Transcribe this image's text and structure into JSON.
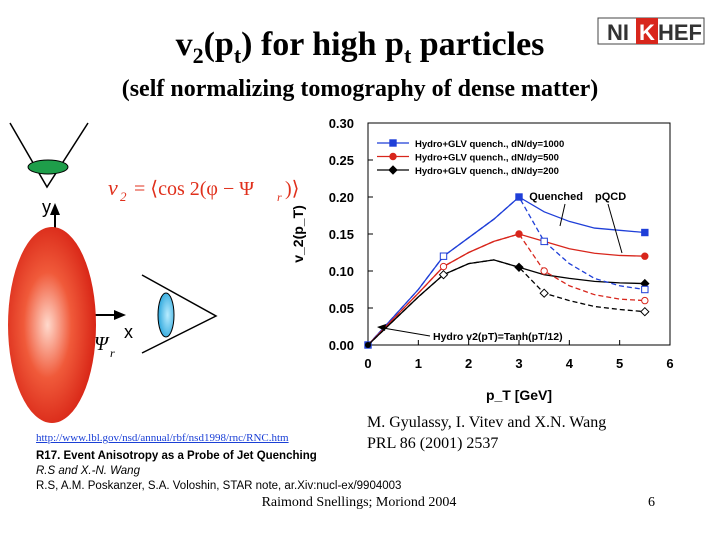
{
  "slide": {
    "title_main": "v",
    "title_sub1": "2",
    "title_mid": "(p",
    "title_sub2": "t",
    "title_end": ") for high p",
    "title_sub3": "t",
    "title_tail": " particles",
    "subtitle": "(self normalizing tomography of dense matter)",
    "logo_text": {
      "a": "NI",
      "b": "K",
      "c": "HEF"
    },
    "formula": {
      "v": "v",
      "v_sub": "2",
      "eq": "= ⟨cos 2(φ − Ψ",
      "psi_sub": "r",
      "close": ")⟩"
    },
    "diagram": {
      "y_label": "y",
      "x_label": "x",
      "psi": "Ψ",
      "psi_sub": "r"
    },
    "reference_1": "M. Gyulassy, I. Vitev and X.N. Wang",
    "reference_2": "PRL 86 (2001) 2537",
    "link": "http://www.lbl.gov/nsd/annual/rbf/nsd1998/rnc/RNC.htm",
    "r17": "R17. Event Anisotropy as a Probe of Jet Quenching",
    "authors_1": "R.S and X.-N. Wang",
    "authors_2": "R.S, A.M. Poskanzer, S.A. Voloshin, STAR note, ar.Xiv:nucl-ex/9904003",
    "footer": "Raimond Snellings; Moriond 2004",
    "page_number": "6"
  },
  "colors": {
    "blue": "#1f3fd8",
    "red": "#d8261c",
    "black": "#000000",
    "ellipse": "#e0301c",
    "green": "#1e9e4a",
    "cyan": "#38b4e8"
  },
  "chart_data": {
    "type": "line",
    "xlabel": "p_T [GeV]",
    "ylabel": "v_2(p_T)",
    "xlim": [
      0,
      6
    ],
    "ylim": [
      0,
      0.3
    ],
    "xticks": [
      "0",
      "1",
      "2",
      "3",
      "4",
      "5",
      "6"
    ],
    "yticks": [
      "0.00",
      "0.05",
      "0.10",
      "0.15",
      "0.20",
      "0.25",
      "0.30"
    ],
    "legend": [
      "Hydro+GLV quench., dN/dy=1000",
      "Hydro+GLV quench., dN/dy=500",
      "Hydro+GLV quench., dN/dy=200"
    ],
    "annotations": {
      "quenched": "Quenched",
      "pqcd": "pQCD",
      "hydro": "Hydro v2(pT)=Tanh(pT/12)"
    },
    "series": [
      {
        "name": "dN/dy=1000 quenched",
        "color": "blue",
        "dashed": false,
        "marker": "square",
        "filled": true,
        "x": [
          0,
          1.0,
          1.5,
          2.0,
          2.5,
          3.0,
          3.5,
          4.0,
          4.5,
          5.0,
          5.5
        ],
        "y": [
          0,
          0.075,
          0.12,
          0.145,
          0.17,
          0.2,
          0.18,
          0.167,
          0.158,
          0.155,
          0.152
        ],
        "mx": [
          0,
          3.0,
          5.5
        ],
        "my": [
          0,
          0.2,
          0.152
        ]
      },
      {
        "name": "dN/dy=500 quenched",
        "color": "red",
        "dashed": false,
        "marker": "circle",
        "filled": true,
        "x": [
          0,
          1.0,
          1.5,
          2.0,
          2.5,
          3.0,
          3.5,
          4.0,
          4.5,
          5.0,
          5.5
        ],
        "y": [
          0,
          0.07,
          0.106,
          0.125,
          0.14,
          0.15,
          0.14,
          0.13,
          0.124,
          0.121,
          0.12
        ],
        "mx": [
          3.0,
          5.5
        ],
        "my": [
          0.15,
          0.12
        ]
      },
      {
        "name": "dN/dy=200 quenched",
        "color": "black",
        "dashed": false,
        "marker": "diamond",
        "filled": true,
        "x": [
          0,
          1.0,
          1.5,
          2.0,
          2.5,
          3.0,
          3.5,
          4.0,
          4.5,
          5.0,
          5.5
        ],
        "y": [
          0,
          0.065,
          0.095,
          0.11,
          0.115,
          0.105,
          0.095,
          0.09,
          0.086,
          0.084,
          0.083
        ],
        "mx": [
          3.0,
          5.5
        ],
        "my": [
          0.105,
          0.083
        ]
      },
      {
        "name": "dN/dy=1000 pQCD",
        "color": "blue",
        "dashed": true,
        "marker": "square",
        "filled": false,
        "x": [
          0,
          1.0,
          1.5,
          2.0,
          2.5,
          3.0,
          3.5,
          4.0,
          4.5,
          5.0,
          5.5
        ],
        "y": [
          0,
          0.075,
          0.12,
          0.145,
          0.17,
          0.2,
          0.14,
          0.11,
          0.09,
          0.08,
          0.075
        ],
        "mx": [
          1.5,
          3.5,
          5.5
        ],
        "my": [
          0.12,
          0.14,
          0.075
        ]
      },
      {
        "name": "dN/dy=500 pQCD",
        "color": "red",
        "dashed": true,
        "marker": "circle",
        "filled": false,
        "x": [
          0,
          1.0,
          1.5,
          2.0,
          2.5,
          3.0,
          3.5,
          4.0,
          4.5,
          5.0,
          5.5
        ],
        "y": [
          0,
          0.07,
          0.106,
          0.125,
          0.14,
          0.15,
          0.1,
          0.08,
          0.068,
          0.062,
          0.06
        ],
        "mx": [
          1.5,
          3.5,
          5.5
        ],
        "my": [
          0.106,
          0.1,
          0.06
        ]
      },
      {
        "name": "dN/dy=200 pQCD",
        "color": "black",
        "dashed": true,
        "marker": "diamond",
        "filled": false,
        "x": [
          0,
          1.0,
          1.5,
          2.0,
          2.5,
          3.0,
          3.5,
          4.0,
          4.5,
          5.0,
          5.5
        ],
        "y": [
          0,
          0.065,
          0.095,
          0.11,
          0.115,
          0.105,
          0.07,
          0.06,
          0.052,
          0.048,
          0.045
        ],
        "mx": [
          1.5,
          3.5,
          5.5
        ],
        "my": [
          0.095,
          0.07,
          0.045
        ]
      }
    ]
  }
}
